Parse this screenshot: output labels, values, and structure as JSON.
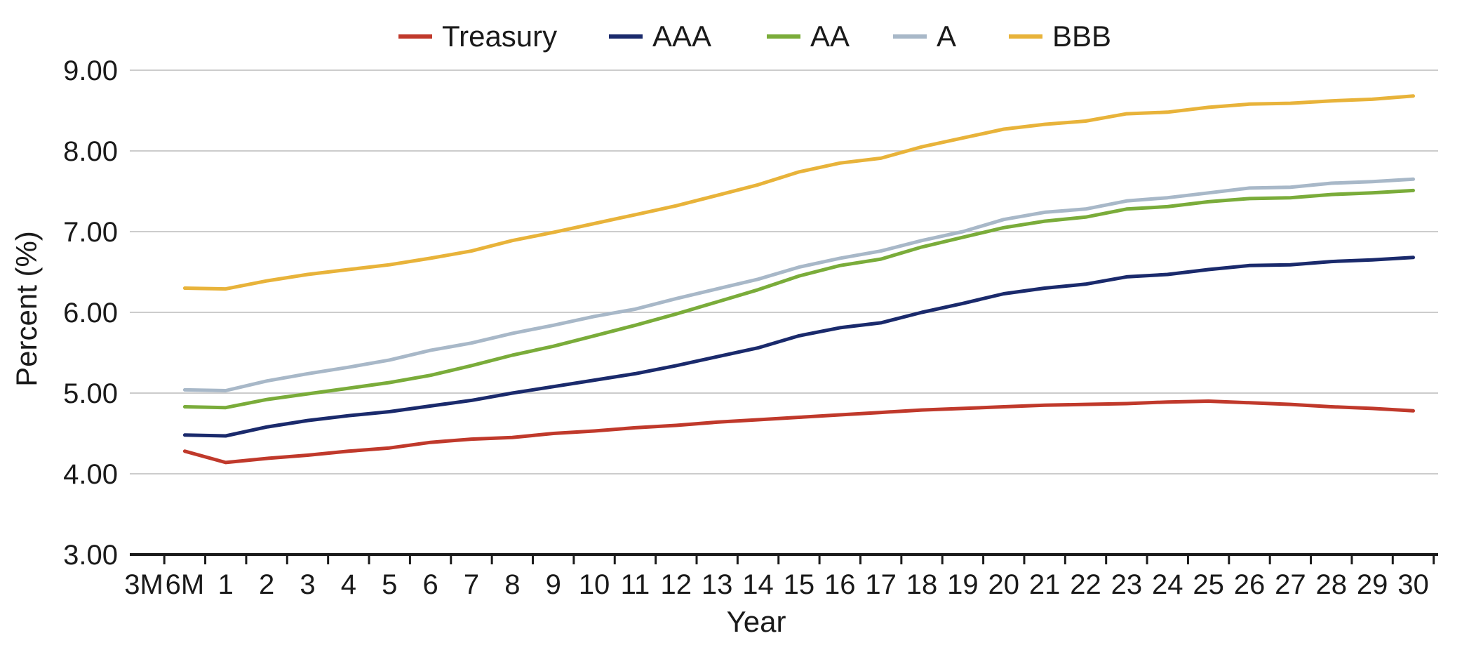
{
  "chart_data": {
    "type": "line",
    "title": "",
    "xlabel": "Year",
    "ylabel": "Percent (%)",
    "ylim": [
      3.0,
      9.0
    ],
    "yticks": [
      "3.00",
      "4.00",
      "5.00",
      "6.00",
      "7.00",
      "8.00",
      "9.00"
    ],
    "grid": true,
    "legend_position": "top-center",
    "categories": [
      "3M",
      "6M",
      "1",
      "2",
      "3",
      "4",
      "5",
      "6",
      "7",
      "8",
      "9",
      "10",
      "11",
      "12",
      "13",
      "14",
      "15",
      "16",
      "17",
      "18",
      "19",
      "20",
      "21",
      "22",
      "23",
      "24",
      "25",
      "26",
      "27",
      "28",
      "29",
      "30"
    ],
    "series": [
      {
        "name": "Treasury",
        "color": "#c0392b",
        "values": [
          null,
          4.28,
          4.14,
          4.19,
          4.23,
          4.28,
          4.32,
          4.39,
          4.43,
          4.45,
          4.5,
          4.53,
          4.57,
          4.6,
          4.64,
          4.67,
          4.7,
          4.73,
          4.76,
          4.79,
          4.81,
          4.83,
          4.85,
          4.86,
          4.87,
          4.89,
          4.9,
          4.88,
          4.86,
          4.83,
          4.81,
          4.78
        ]
      },
      {
        "name": "AAA",
        "color": "#1a2a6c",
        "values": [
          null,
          4.48,
          4.47,
          4.58,
          4.66,
          4.72,
          4.77,
          4.84,
          4.91,
          5.0,
          5.08,
          5.16,
          5.24,
          5.34,
          5.45,
          5.56,
          5.71,
          5.81,
          5.87,
          6.0,
          6.11,
          6.23,
          6.3,
          6.35,
          6.44,
          6.47,
          6.53,
          6.58,
          6.59,
          6.63,
          6.65,
          6.68
        ]
      },
      {
        "name": "AA",
        "color": "#7aac3a",
        "values": [
          null,
          4.83,
          4.82,
          4.92,
          4.99,
          5.06,
          5.13,
          5.22,
          5.34,
          5.47,
          5.58,
          5.71,
          5.84,
          5.98,
          6.13,
          6.28,
          6.45,
          6.58,
          6.66,
          6.81,
          6.93,
          7.05,
          7.13,
          7.18,
          7.28,
          7.31,
          7.37,
          7.41,
          7.42,
          7.46,
          7.48,
          7.51
        ]
      },
      {
        "name": "A",
        "color": "#a8b8c8",
        "values": [
          null,
          5.04,
          5.03,
          5.15,
          5.24,
          5.32,
          5.41,
          5.53,
          5.62,
          5.74,
          5.84,
          5.95,
          6.04,
          6.17,
          6.29,
          6.41,
          6.56,
          6.67,
          6.76,
          6.89,
          7.0,
          7.15,
          7.24,
          7.28,
          7.38,
          7.42,
          7.48,
          7.54,
          7.55,
          7.6,
          7.62,
          7.65
        ]
      },
      {
        "name": "BBB",
        "color": "#e8b33a",
        "values": [
          null,
          6.3,
          6.29,
          6.39,
          6.47,
          6.53,
          6.59,
          6.67,
          6.76,
          6.89,
          6.99,
          7.1,
          7.21,
          7.32,
          7.45,
          7.58,
          7.74,
          7.85,
          7.91,
          8.05,
          8.16,
          8.27,
          8.33,
          8.37,
          8.46,
          8.48,
          8.54,
          8.58,
          8.59,
          8.62,
          8.64,
          8.68
        ]
      }
    ]
  }
}
